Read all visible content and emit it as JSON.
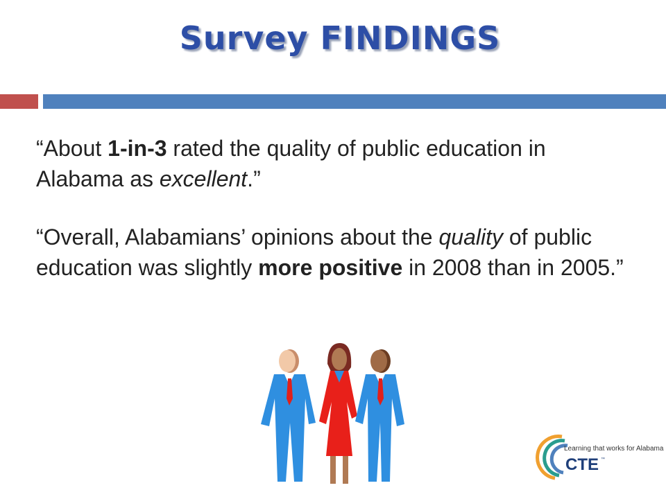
{
  "header": {
    "title": "Survey FINDINGS"
  },
  "quotes": [
    {
      "parts": [
        "“About ",
        "1-in-3",
        " rated the quality of public education in Alabama as ",
        "excellent",
        ".”"
      ]
    },
    {
      "parts": [
        "“Overall, Alabamians’ opinions about the ",
        "quality",
        " of public education was slightly ",
        "more positive",
        " in 2008 than in 2005.”"
      ]
    }
  ],
  "logo": {
    "tagline": "Learning that works for Alabama",
    "name": "CTE",
    "mark": "™"
  }
}
